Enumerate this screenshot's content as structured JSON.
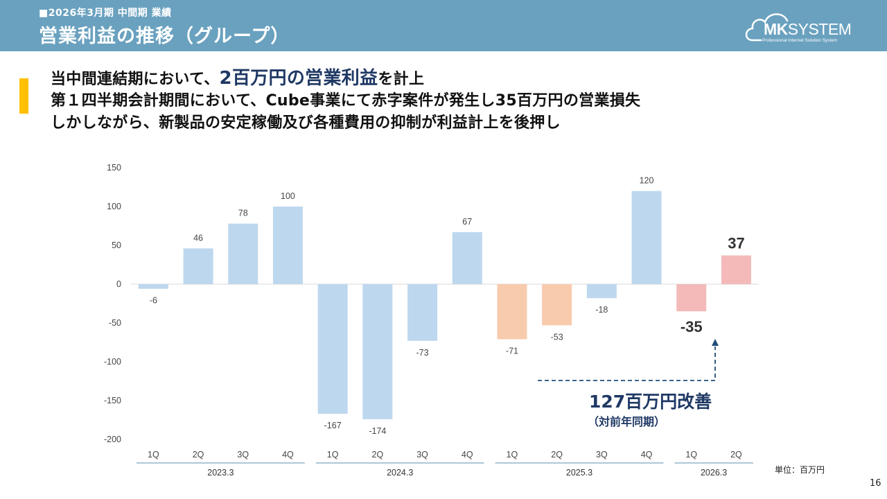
{
  "header": {
    "subtitle": "■2026年3月期 中間期 業績",
    "title": "営業利益の推移（グループ）"
  },
  "logo": {
    "brand_mk": "MK",
    "brand_system": "SYSTEM",
    "tagline": "Professional Internet Solution System"
  },
  "headline": {
    "line1_pre": "当中間連結期において、",
    "line1_highlight": "2百万円の営業利益",
    "line1_post": "を計上",
    "line2": "第１四半期会計期間において、Cube事業にて赤字案件が発生し35百万円の営業損失",
    "line3": "しかしながら、新製品の安定稼働及び各種費用の抑制が利益計上を後押し"
  },
  "chart_data": {
    "type": "bar",
    "title": "",
    "xlabel": "",
    "ylabel": "",
    "ylim": [
      -200,
      150
    ],
    "yticks": [
      150,
      100,
      50,
      0,
      -50,
      -100,
      -150,
      -200
    ],
    "categories": [
      "1Q",
      "2Q",
      "3Q",
      "4Q",
      "1Q",
      "2Q",
      "3Q",
      "4Q",
      "1Q",
      "2Q",
      "3Q",
      "4Q",
      "1Q",
      "2Q"
    ],
    "groups": [
      {
        "label": "2023.3",
        "count": 4
      },
      {
        "label": "2024.3",
        "count": 4
      },
      {
        "label": "2025.3",
        "count": 4
      },
      {
        "label": "2026.3",
        "count": 2
      }
    ],
    "values": [
      -6,
      46,
      78,
      100,
      -167,
      -174,
      -73,
      67,
      -71,
      -53,
      -18,
      120,
      -35,
      37
    ],
    "labels": [
      "-6",
      "46",
      "78",
      "100",
      "-167",
      "-174",
      "-73",
      "67",
      "-71",
      "-53",
      "-18",
      "120",
      "-35",
      "37"
    ],
    "emphasized": [
      12,
      13
    ],
    "bar_colors": [
      "#bdd7ee",
      "#bdd7ee",
      "#bdd7ee",
      "#bdd7ee",
      "#bdd7ee",
      "#bdd7ee",
      "#bdd7ee",
      "#bdd7ee",
      "#f8cbad",
      "#f8cbad",
      "#bdd7ee",
      "#bdd7ee",
      "#f4b9b9",
      "#f4b9b9"
    ],
    "annotation": {
      "text": "127百万円改善",
      "subtext": "（対前年同期）"
    }
  },
  "footer": {
    "unit": "単位：百万円",
    "page": "16"
  }
}
